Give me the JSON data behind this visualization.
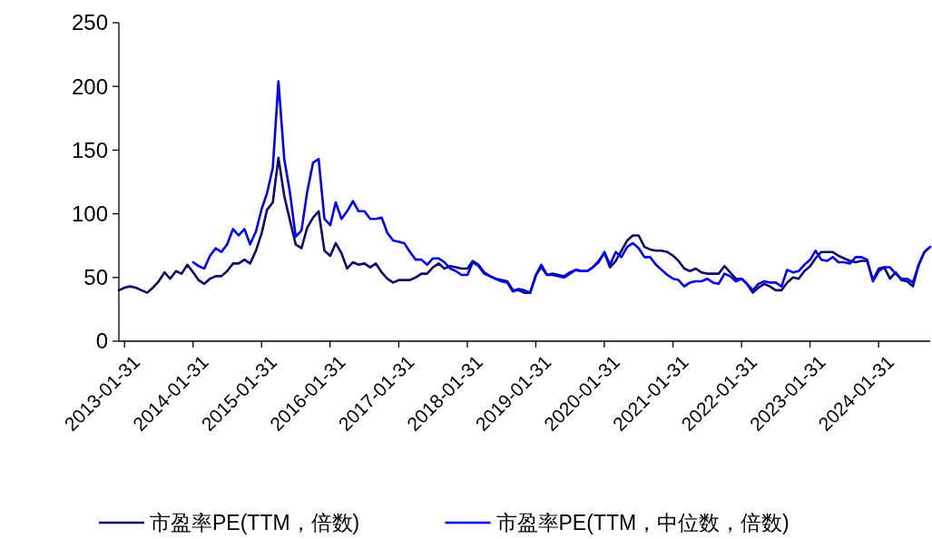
{
  "chart_data": {
    "type": "line",
    "legend": "bottom",
    "ylim": [
      0,
      250
    ],
    "yticks": [
      0,
      50,
      100,
      150,
      200,
      250
    ],
    "xlim": [
      "2013-01",
      "2024-11"
    ],
    "xticks": [
      "2013-01-31",
      "2014-01-31",
      "2015-01-31",
      "2016-01-31",
      "2017-01-31",
      "2018-01-31",
      "2019-01-31",
      "2020-01-31",
      "2021-01-31",
      "2022-01-31",
      "2023-01-31",
      "2024-01-31"
    ],
    "x": [
      "2013-01",
      "2013-02",
      "2013-03",
      "2013-04",
      "2013-05",
      "2013-06",
      "2013-07",
      "2013-08",
      "2013-09",
      "2013-10",
      "2013-11",
      "2013-12",
      "2014-01",
      "2014-02",
      "2014-03",
      "2014-04",
      "2014-05",
      "2014-06",
      "2014-07",
      "2014-08",
      "2014-09",
      "2014-10",
      "2014-11",
      "2014-12",
      "2015-01",
      "2015-02",
      "2015-03",
      "2015-04",
      "2015-05",
      "2015-06",
      "2015-07",
      "2015-08",
      "2015-09",
      "2015-10",
      "2015-11",
      "2015-12",
      "2016-01",
      "2016-02",
      "2016-03",
      "2016-04",
      "2016-05",
      "2016-06",
      "2016-07",
      "2016-08",
      "2016-09",
      "2016-10",
      "2016-11",
      "2016-12",
      "2017-01",
      "2017-02",
      "2017-03",
      "2017-04",
      "2017-05",
      "2017-06",
      "2017-07",
      "2017-08",
      "2017-09",
      "2017-10",
      "2017-11",
      "2017-12",
      "2018-01",
      "2018-02",
      "2018-03",
      "2018-04",
      "2018-05",
      "2018-06",
      "2018-07",
      "2018-08",
      "2018-09",
      "2018-10",
      "2018-11",
      "2018-12",
      "2019-01",
      "2019-02",
      "2019-03",
      "2019-04",
      "2019-05",
      "2019-06",
      "2019-07",
      "2019-08",
      "2019-09",
      "2019-10",
      "2019-11",
      "2019-12",
      "2020-01",
      "2020-02",
      "2020-03",
      "2020-04",
      "2020-05",
      "2020-06",
      "2020-07",
      "2020-08",
      "2020-09",
      "2020-10",
      "2020-11",
      "2020-12",
      "2021-01",
      "2021-02",
      "2021-03",
      "2021-04",
      "2021-05",
      "2021-06",
      "2021-07",
      "2021-08",
      "2021-09",
      "2021-10",
      "2021-11",
      "2021-12",
      "2022-01",
      "2022-02",
      "2022-03",
      "2022-04",
      "2022-05",
      "2022-06",
      "2022-07",
      "2022-08",
      "2022-09",
      "2022-10",
      "2022-11",
      "2022-12",
      "2023-01",
      "2023-02",
      "2023-03",
      "2023-04",
      "2023-05",
      "2023-06",
      "2023-07",
      "2023-08",
      "2023-09",
      "2023-10",
      "2023-11",
      "2023-12",
      "2024-01",
      "2024-02",
      "2024-03",
      "2024-04",
      "2024-05",
      "2024-06",
      "2024-07",
      "2024-08",
      "2024-09",
      "2024-10",
      "2024-11"
    ],
    "series": [
      {
        "name": "市盈率PE(TTM，倍数)",
        "color": "#0c0c70",
        "values": [
          40,
          42,
          43,
          42,
          40,
          38,
          42,
          47,
          54,
          49,
          55,
          53,
          60,
          54,
          48,
          45,
          49,
          51,
          51,
          55,
          61,
          61,
          64,
          61,
          71,
          85,
          103,
          109,
          144,
          114,
          95,
          76,
          73,
          89,
          97,
          102,
          71,
          67,
          77,
          69,
          57,
          62,
          60,
          61,
          58,
          61,
          54,
          49,
          46,
          48,
          48,
          48,
          50,
          53,
          53,
          58,
          61,
          57,
          59,
          58,
          57,
          57,
          63,
          60,
          54,
          51,
          49,
          48,
          47,
          40,
          40,
          38,
          38,
          52,
          58,
          52,
          53,
          52,
          51,
          54,
          56,
          55,
          55,
          58,
          63,
          69,
          58,
          63,
          71,
          79,
          83,
          83,
          74,
          72,
          71,
          71,
          70,
          67,
          63,
          57,
          55,
          57,
          54,
          53,
          53,
          53,
          59,
          54,
          49,
          49,
          45,
          38,
          42,
          45,
          43,
          40,
          40,
          46,
          50,
          49,
          55,
          59,
          65,
          70,
          70,
          70,
          67,
          65,
          63,
          62,
          63,
          63,
          48,
          57,
          58,
          49,
          54,
          48,
          47,
          43,
          60,
          70,
          74
        ]
      },
      {
        "name": "市盈率PE(TTM，中位数，倍数)",
        "color": "#0000ff",
        "values": [
          null,
          null,
          null,
          null,
          null,
          null,
          null,
          null,
          null,
          null,
          null,
          null,
          null,
          62,
          59,
          57,
          67,
          73,
          70,
          76,
          88,
          83,
          88,
          76,
          86,
          104,
          116,
          136,
          204,
          143,
          117,
          82,
          87,
          117,
          140,
          143,
          96,
          91,
          109,
          96,
          102,
          110,
          102,
          102,
          96,
          96,
          97,
          85,
          79,
          78,
          77,
          70,
          64,
          64,
          60,
          65,
          65,
          62,
          57,
          55,
          52,
          52,
          62,
          59,
          53,
          51,
          49,
          47,
          46,
          39,
          41,
          40,
          38,
          52,
          60,
          52,
          52,
          51,
          50,
          53,
          56,
          55,
          55,
          58,
          62,
          70,
          60,
          70,
          66,
          74,
          77,
          73,
          66,
          66,
          60,
          56,
          52,
          49,
          48,
          43,
          46,
          47,
          47,
          49,
          46,
          45,
          53,
          51,
          47,
          49,
          45,
          40,
          45,
          47,
          46,
          46,
          43,
          56,
          54,
          55,
          60,
          64,
          71,
          64,
          63,
          66,
          62,
          62,
          61,
          66,
          66,
          64,
          47,
          55,
          58,
          58,
          53,
          49,
          49,
          46,
          60,
          70,
          74
        ]
      }
    ]
  }
}
